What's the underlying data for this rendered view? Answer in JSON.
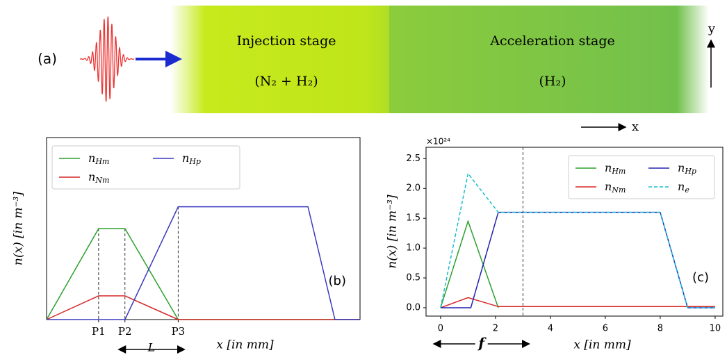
{
  "diagram": {
    "label": "(a)",
    "stages": [
      {
        "title": "Injection stage",
        "gas": "(N₂ + H₂)"
      },
      {
        "title": "Acceleration stage",
        "gas": "(H₂)"
      }
    ],
    "axis_y": "y",
    "axis_x": "x"
  },
  "chart_data": [
    {
      "type": "line",
      "panel_label": "(b)",
      "xlabel": "x [in mm]",
      "ylabel": "n(x) [in m⁻³]",
      "xlim": [
        0,
        100
      ],
      "ylim": [
        0,
        100
      ],
      "xticks": [
        {
          "value": 16.6,
          "label": "P1"
        },
        {
          "value": 25,
          "label": "P2"
        },
        {
          "value": 42,
          "label": "P3"
        }
      ],
      "annotation": "L",
      "legend": "upper left",
      "series": [
        {
          "name": "nHm",
          "color": "#2ca02c",
          "x": [
            0,
            16.6,
            25,
            42,
            100
          ],
          "values": [
            0,
            50,
            50,
            0,
            0
          ]
        },
        {
          "name": "nNm",
          "color": "#d62728",
          "x": [
            0,
            16.6,
            25,
            42,
            100
          ],
          "values": [
            0,
            13,
            13,
            0,
            0
          ]
        },
        {
          "name": "nHp",
          "color": "#3a3ac0",
          "x": [
            0,
            25,
            42,
            83.4,
            92,
            100
          ],
          "values": [
            0,
            0,
            62,
            62,
            0,
            0
          ]
        }
      ]
    },
    {
      "type": "line",
      "panel_label": "(c)",
      "xlabel": "x [in mm]",
      "ylabel": "n(x) [in m⁻³]",
      "y_multiplier": "×10²⁴",
      "xlim": [
        -0.53,
        10.28
      ],
      "ylim": [
        -0.14,
        2.69
      ],
      "xticks": [
        0,
        2,
        4,
        6,
        8,
        10
      ],
      "yticks": [
        {
          "value": 0,
          "label": "0.0"
        },
        {
          "value": 0.5,
          "label": "0.5"
        },
        {
          "value": 1,
          "label": "1.0"
        },
        {
          "value": 1.5,
          "label": "1.5"
        },
        {
          "value": 2,
          "label": "2.0"
        },
        {
          "value": 2.5,
          "label": "2.5"
        }
      ],
      "vline": 3,
      "annotation": "f",
      "legend": "upper right",
      "series": [
        {
          "name": "nHm",
          "color": "#2ca02c",
          "x": [
            0,
            1,
            2.1
          ],
          "values": [
            0,
            1.45,
            0
          ]
        },
        {
          "name": "nNm",
          "color": "#d62728",
          "x": [
            0,
            1,
            2.1,
            10
          ],
          "values": [
            0,
            0.17,
            0.02,
            0.02
          ]
        },
        {
          "name": "nHp",
          "color": "#2020b0",
          "x": [
            0,
            1.1,
            2.1,
            8,
            9,
            10
          ],
          "values": [
            0,
            0,
            1.6,
            1.6,
            0,
            0
          ]
        },
        {
          "name": "ne",
          "color": "#17becf",
          "dash": true,
          "x": [
            0,
            1,
            2.1,
            8,
            9,
            10
          ],
          "values": [
            0,
            2.25,
            1.6,
            1.6,
            0,
            0
          ]
        }
      ]
    }
  ]
}
